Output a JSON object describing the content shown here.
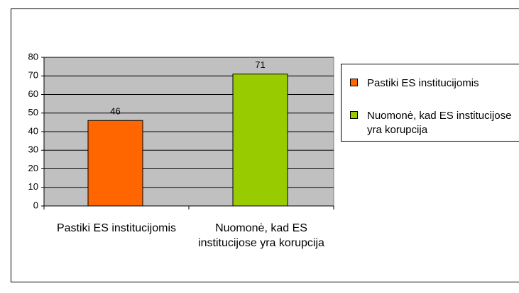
{
  "chart_data": {
    "type": "bar",
    "categories": [
      "Pastiki ES institucijomis",
      "Nuomonė, kad ES institucijose yra korupcija"
    ],
    "series": [
      {
        "name": "Pastiki ES institucijomis",
        "color": "#ff6600",
        "values": [
          46,
          null
        ]
      },
      {
        "name": "Nuomonė, kad ES institucijose yra korupcija",
        "color": "#99cc00",
        "values": [
          null,
          71
        ]
      }
    ],
    "ylim": [
      0,
      80
    ],
    "yticks": [
      0,
      10,
      20,
      30,
      40,
      50,
      60,
      70,
      80
    ],
    "grid": true,
    "legend": "right"
  }
}
